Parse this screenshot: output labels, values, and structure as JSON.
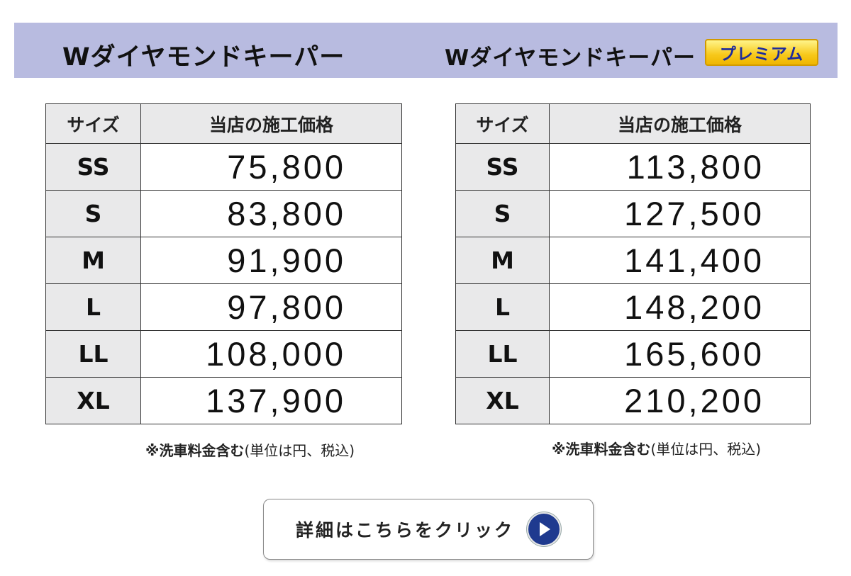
{
  "header": {
    "left_title": "Wダイヤモンドキーパー",
    "right_title": "Wダイヤモンドキーパー",
    "premium_badge": "プレミアム"
  },
  "tables": {
    "left": {
      "col_size": "サイズ",
      "col_price": "当店の施工価格",
      "rows": [
        {
          "size": "SS",
          "price": "75,800"
        },
        {
          "size": "S",
          "price": "83,800"
        },
        {
          "size": "M",
          "price": "91,900"
        },
        {
          "size": "L",
          "price": "97,800"
        },
        {
          "size": "LL",
          "price": "108,000"
        },
        {
          "size": "XL",
          "price": "137,900"
        }
      ],
      "note_bold": "※洗車料金含む",
      "note_rest": "(単位は円、税込)"
    },
    "right": {
      "col_size": "サイズ",
      "col_price": "当店の施工価格",
      "rows": [
        {
          "size": "SS",
          "price": "113,800"
        },
        {
          "size": "S",
          "price": "127,500"
        },
        {
          "size": "M",
          "price": "141,400"
        },
        {
          "size": "L",
          "price": "148,200"
        },
        {
          "size": "LL",
          "price": "165,600"
        },
        {
          "size": "XL",
          "price": "210,200"
        }
      ],
      "note_bold": "※洗車料金含む",
      "note_rest": "(単位は円、税込)"
    }
  },
  "details_button": {
    "label": "詳細はこちらをクリック",
    "icon": "play-circle-icon"
  },
  "colors": {
    "header_band": "#b8bbe0",
    "cell_gray": "#e9e9ea",
    "badge_yellow": "#f7c81a",
    "badge_text": "#1d2b9c",
    "play_icon": "#1f3a8f"
  }
}
